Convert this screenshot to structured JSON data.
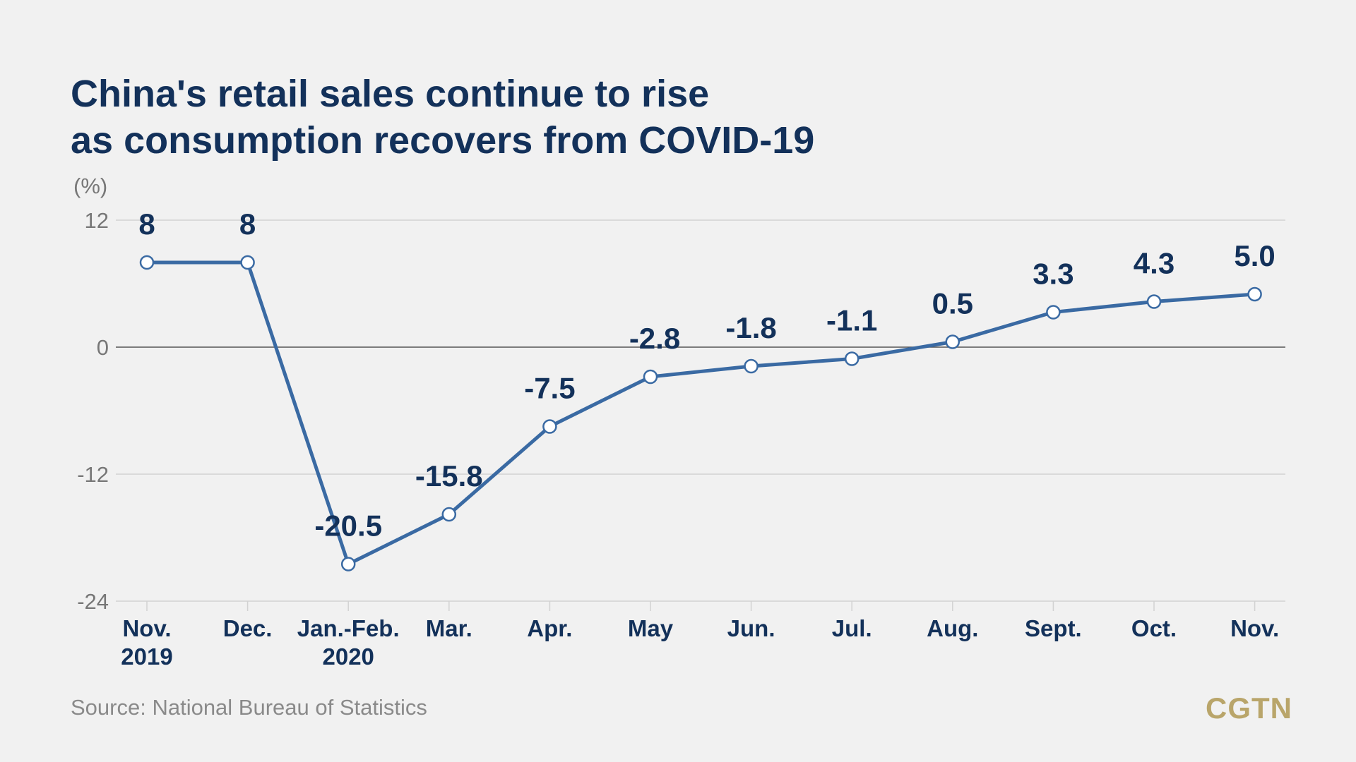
{
  "chart_data": {
    "type": "line",
    "title_lines": [
      "China's retail sales continue to rise",
      "as consumption recovers from COVID-19"
    ],
    "ylabel": "(%)",
    "ylim": [
      -24,
      12
    ],
    "yticks": [
      {
        "value": 12,
        "label": "12"
      },
      {
        "value": 0,
        "label": "0"
      },
      {
        "value": -12,
        "label": "-12"
      },
      {
        "value": -24,
        "label": "-24"
      }
    ],
    "categories": [
      [
        "Nov.",
        "2019"
      ],
      [
        "Dec."
      ],
      [
        "Jan.-Feb.",
        "2020"
      ],
      [
        "Mar."
      ],
      [
        "Apr."
      ],
      [
        "May"
      ],
      [
        "Jun."
      ],
      [
        "Jul."
      ],
      [
        "Aug."
      ],
      [
        "Sept."
      ],
      [
        "Oct."
      ],
      [
        "Nov."
      ]
    ],
    "values": [
      8,
      8,
      -20.5,
      -15.8,
      -7.5,
      -2.8,
      -1.8,
      -1.1,
      0.5,
      3.3,
      4.3,
      5.0
    ],
    "value_labels": [
      "8",
      "8",
      "-20.5",
      "-15.8",
      "-7.5",
      "-2.8",
      "-1.8",
      "-1.1",
      "0.5",
      "3.3",
      "4.3",
      "5.0"
    ],
    "grid": true,
    "line_color": "#3a6aa3",
    "text_color": "#13315a"
  },
  "source": "Source: National Bureau of Statistics",
  "logo": "CGTN",
  "colors": {
    "background": "#f1f1f1",
    "logo": "#b9a56a"
  }
}
